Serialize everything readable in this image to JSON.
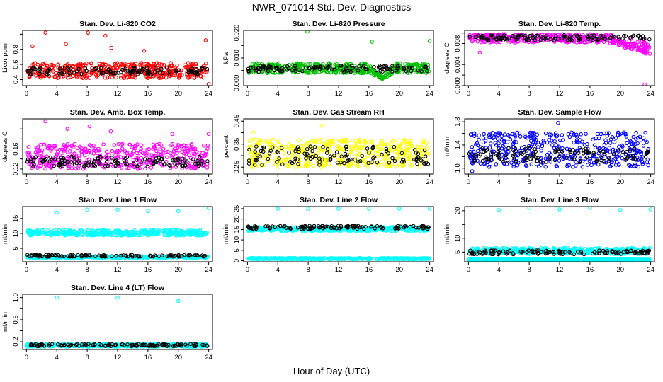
{
  "figure": {
    "title": "NWR_071014  Std. Dev. Diagnostics",
    "xlabel": "Hour of Day (UTC)"
  },
  "chart_data": [
    {
      "type": "scatter",
      "title": "Stan. Dev. Li-820 CO2",
      "ylabel": "Licor ppm",
      "xlim": [
        -0.5,
        24.5
      ],
      "ylim": [
        0.32,
        1.05
      ],
      "xticks": [
        0,
        4,
        8,
        12,
        16,
        20,
        24
      ],
      "yticks": [
        0.4,
        0.6,
        0.8,
        1.0
      ],
      "ytick_labels": [
        "0.4",
        "0.6",
        "0.8",
        ""
      ],
      "series": [
        {
          "color": "#ff0000",
          "band": [
            0.42,
            0.62
          ],
          "outliers": [
            [
              0.8,
              0.84
            ],
            [
              2.5,
              1.02
            ],
            [
              5.2,
              0.87
            ],
            [
              8.1,
              1.02
            ],
            [
              10.4,
              0.98
            ],
            [
              11.2,
              0.82
            ],
            [
              15.5,
              0.78
            ],
            [
              23.6,
              0.92
            ],
            [
              24.0,
              0.34
            ]
          ]
        },
        {
          "color": "#000000",
          "band": [
            0.46,
            0.56
          ],
          "sparse": true
        }
      ]
    },
    {
      "type": "scatter",
      "title": "Stan. Dev. Li-820 Pressure",
      "ylabel": "kPa",
      "xlim": [
        -0.5,
        24.5
      ],
      "ylim": [
        -0.001,
        0.021
      ],
      "xticks": [
        0,
        4,
        8,
        12,
        16,
        20,
        24
      ],
      "yticks": [
        0.0,
        0.005,
        0.01,
        0.015,
        0.02
      ],
      "ytick_labels": [
        "0.000",
        "",
        "0.010",
        "",
        "0.020"
      ],
      "series": [
        {
          "color": "#00c000",
          "band": [
            0.004,
            0.008
          ],
          "dip": [
            16.0,
            19.5,
            0.001
          ],
          "outliers": [
            [
              7.9,
              0.0205
            ],
            [
              16.4,
              0.0165
            ],
            [
              24.0,
              0.0168
            ]
          ]
        },
        {
          "color": "#000000",
          "band": [
            0.0045,
            0.007
          ],
          "sparse": true
        }
      ]
    },
    {
      "type": "scatter",
      "title": "Stan. Dev. Li-820 Temp.",
      "ylabel": "degrees C",
      "xlim": [
        -0.5,
        24.5
      ],
      "ylim": [
        0.0,
        0.0105
      ],
      "xticks": [
        0,
        4,
        8,
        12,
        16,
        20,
        24
      ],
      "yticks": [
        0.0,
        0.002,
        0.004,
        0.006,
        0.008,
        0.01
      ],
      "ytick_labels": [
        "0.000",
        "",
        "0.004",
        "",
        "0.008",
        ""
      ],
      "series": [
        {
          "color": "#ff00ff",
          "band": [
            0.0082,
            0.0098
          ],
          "drop": [
            18.0,
            24.0,
            0.006
          ],
          "outliers": [
            [
              1.5,
              0.0063
            ],
            [
              23.2,
              0.0002
            ]
          ]
        },
        {
          "color": "#000000",
          "band": [
            0.0086,
            0.0096
          ],
          "sparse": true
        }
      ]
    },
    {
      "type": "scatter",
      "title": "Stan. Dev. Amb. Box Temp.",
      "ylabel": "degrees C",
      "xlim": [
        -0.5,
        24.5
      ],
      "ylim": [
        0.11,
        0.22
      ],
      "xticks": [
        0,
        4,
        8,
        12,
        16,
        20,
        24
      ],
      "yticks": [
        0.12,
        0.14,
        0.16,
        0.18,
        0.2
      ],
      "ytick_labels": [
        "0.12",
        "",
        "0.16",
        "",
        ""
      ],
      "series": [
        {
          "color": "#ff00ff",
          "band": [
            0.12,
            0.17
          ],
          "outliers": [
            [
              2.5,
              0.215
            ],
            [
              5.4,
              0.2
            ],
            [
              8.3,
              0.205
            ],
            [
              11.1,
              0.195
            ],
            [
              19.2,
              0.19
            ],
            [
              24.0,
              0.19
            ]
          ]
        },
        {
          "color": "#000000",
          "band": [
            0.125,
            0.145
          ],
          "sparse": true
        }
      ]
    },
    {
      "type": "scatter",
      "title": "Stan. Dev. Gas Stream RH",
      "ylabel": "percent",
      "xlim": [
        -0.5,
        24.5
      ],
      "ylim": [
        0.22,
        0.46
      ],
      "xticks": [
        0,
        4,
        8,
        12,
        16,
        20,
        24
      ],
      "yticks": [
        0.25,
        0.3,
        0.35,
        0.4,
        0.45
      ],
      "ytick_labels": [
        "0.25",
        "",
        "0.35",
        "",
        "0.45"
      ],
      "series": [
        {
          "color": "#ffff00",
          "band": [
            0.25,
            0.37
          ],
          "outliers": [
            [
              9.8,
              0.43
            ],
            [
              0.8,
              0.4
            ]
          ]
        },
        {
          "color": "#000000",
          "band": [
            0.26,
            0.34
          ],
          "sparse": true
        }
      ]
    },
    {
      "type": "scatter",
      "title": "Stan. Dev. Sample Flow",
      "ylabel": "ml/min",
      "xlim": [
        -0.5,
        24.5
      ],
      "ylim": [
        0.9,
        1.85
      ],
      "xticks": [
        0,
        4,
        8,
        12,
        16,
        20,
        24
      ],
      "yticks": [
        1.0,
        1.2,
        1.4,
        1.6,
        1.8
      ],
      "ytick_labels": [
        "1.0",
        "",
        "1.4",
        "",
        "1.8"
      ],
      "series": [
        {
          "color": "#0000ff",
          "band": [
            1.02,
            1.62
          ],
          "outliers": [
            [
              0.5,
              0.95
            ],
            [
              11.8,
              1.78
            ]
          ]
        },
        {
          "color": "#000000",
          "band": [
            1.1,
            1.35
          ],
          "sparse": true
        }
      ]
    },
    {
      "type": "scatter",
      "title": "Stan. Dev. Line 1 Flow",
      "ylabel": "ml/min",
      "xlim": [
        -0.5,
        24.5
      ],
      "ylim": [
        0.5,
        19.0
      ],
      "xticks": [
        0,
        4,
        8,
        12,
        16,
        20,
        24
      ],
      "yticks": [
        5,
        10,
        15
      ],
      "ytick_labels": [
        "5",
        "10",
        "15"
      ],
      "series": [
        {
          "color": "#00ffff",
          "band": [
            9.3,
            11.2
          ],
          "outliers": [
            [
              4.0,
              17.0
            ],
            [
              8.0,
              18.0
            ],
            [
              12.0,
              18.0
            ],
            [
              16.0,
              17.5
            ],
            [
              20.0,
              17.5
            ],
            [
              24.0,
              18.5
            ]
          ]
        },
        {
          "color": "#00ffff",
          "band": [
            1.8,
            2.3
          ]
        },
        {
          "color": "#000000",
          "band": [
            2.2,
            2.8
          ],
          "sparse": true
        }
      ]
    },
    {
      "type": "scatter",
      "title": "Stan. Dev. Line 2 Flow",
      "ylabel": "ml/min",
      "xlim": [
        -0.5,
        24.5
      ],
      "ylim": [
        -0.5,
        26.0
      ],
      "xticks": [
        0,
        4,
        8,
        12,
        16,
        20,
        24
      ],
      "yticks": [
        0,
        5,
        10,
        15,
        20,
        25
      ],
      "ytick_labels": [
        "0",
        "5",
        "10",
        "15",
        "20",
        "25"
      ],
      "series": [
        {
          "color": "#00ffff",
          "band": [
            14.3,
            16.2
          ],
          "outliers": [
            [
              4.0,
              25.0
            ],
            [
              8.0,
              25.0
            ],
            [
              12.0,
              25.0
            ],
            [
              16.0,
              25.0
            ],
            [
              20.0,
              25.0
            ],
            [
              24.0,
              25.0
            ]
          ]
        },
        {
          "color": "#00ffff",
          "band": [
            0.7,
            1.3
          ]
        },
        {
          "color": "#000000",
          "band": [
            15.3,
            16.8
          ],
          "sparse": true
        }
      ]
    },
    {
      "type": "scatter",
      "title": "Stan. Dev. Line 3 Flow",
      "ylabel": "ml/min",
      "xlim": [
        -0.5,
        24.5
      ],
      "ylim": [
        1.5,
        21.5
      ],
      "xticks": [
        0,
        4,
        8,
        12,
        16,
        20,
        24
      ],
      "yticks": [
        5,
        10,
        15,
        20
      ],
      "ytick_labels": [
        "5",
        "10",
        "",
        "20"
      ],
      "series": [
        {
          "color": "#00ffff",
          "band": [
            4.3,
            6.5
          ],
          "outliers": [
            [
              4.0,
              20.3
            ],
            [
              8.0,
              21.0
            ],
            [
              12.0,
              20.5
            ],
            [
              16.0,
              21.0
            ],
            [
              20.0,
              20.3
            ],
            [
              24.0,
              20.5
            ]
          ]
        },
        {
          "color": "#00ffff",
          "band": [
            2.0,
            2.6
          ]
        },
        {
          "color": "#000000",
          "band": [
            4.2,
            5.6
          ],
          "sparse": true
        }
      ]
    },
    {
      "type": "scatter",
      "title": "Stan. Dev. Line 4 (LT) Flow",
      "ylabel": "ml/min",
      "xlim": [
        -0.5,
        24.5
      ],
      "ylim": [
        0.06,
        1.06
      ],
      "xticks": [
        0,
        4,
        8,
        12,
        16,
        20,
        24
      ],
      "yticks": [
        0.2,
        0.4,
        0.6,
        0.8,
        1.0
      ],
      "ytick_labels": [
        "0.2",
        "",
        "0.6",
        "",
        "1.0"
      ],
      "series": [
        {
          "color": "#00ffff",
          "band": [
            0.11,
            0.16
          ],
          "outliers": [
            [
              4.0,
              1.0
            ],
            [
              12.0,
              1.0
            ],
            [
              20.0,
              0.94
            ]
          ]
        },
        {
          "color": "#000000",
          "band": [
            0.12,
            0.16
          ],
          "sparse": true
        }
      ]
    }
  ]
}
